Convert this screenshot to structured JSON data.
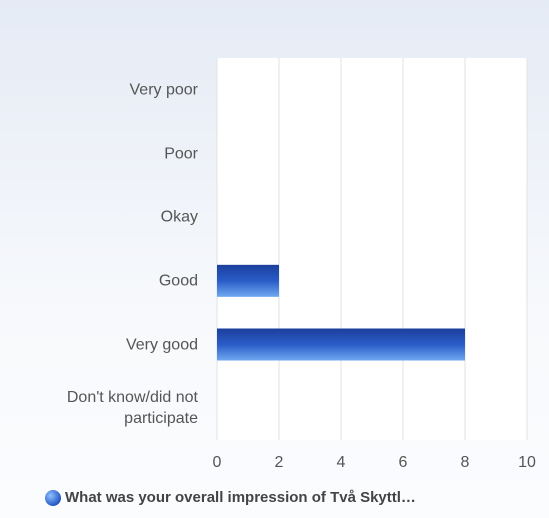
{
  "chart_data": {
    "type": "bar",
    "orientation": "horizontal",
    "categories": [
      "Very poor",
      "Poor",
      "Okay",
      "Good",
      "Very good",
      "Don't know/did not participate"
    ],
    "series": [
      {
        "name": "What was your overall impression of Två Skyttl…",
        "color": "#2a5cc8",
        "values": [
          0,
          0,
          0,
          2,
          8,
          0
        ]
      }
    ],
    "xlim": [
      0,
      10
    ],
    "xticks": [
      0,
      2,
      4,
      6,
      8,
      10
    ],
    "grid": true,
    "legend": "bottom"
  }
}
